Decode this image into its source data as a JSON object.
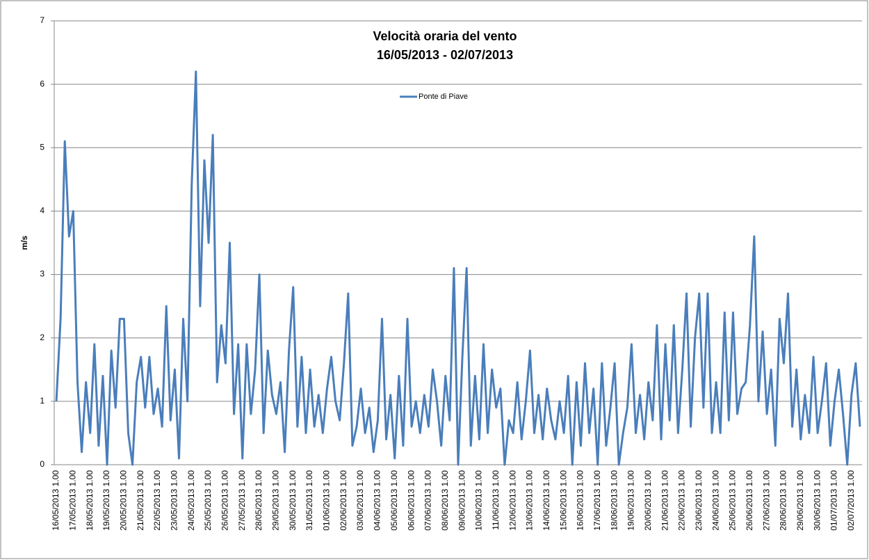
{
  "chart_data": {
    "type": "line",
    "title": "Velocità oraria del vento",
    "subtitle": "16/05/2013 - 02/07/2013",
    "y_label": "m/s",
    "legend": "top",
    "grid": true,
    "ylim": [
      0,
      7
    ],
    "yticks": [
      0,
      1,
      2,
      3,
      4,
      5,
      6,
      7
    ],
    "categories": [
      "16/05/2013 1.00",
      null,
      null,
      null,
      "17/05/2013 1.00",
      null,
      null,
      null,
      "18/05/2013 1.00",
      null,
      null,
      null,
      "19/05/2013 1.00",
      null,
      null,
      null,
      "20/05/2013 1.00",
      null,
      null,
      null,
      "21/05/2013 1.00",
      null,
      null,
      null,
      "22/05/2013 1.00",
      null,
      null,
      null,
      "23/05/2013 1.00",
      null,
      null,
      null,
      "24/05/2013 1.00",
      null,
      null,
      null,
      "25/05/2013 1.00",
      null,
      null,
      null,
      "26/05/2013 1.00",
      null,
      null,
      null,
      "27/05/2013 1.00",
      null,
      null,
      null,
      "28/05/2013 1.00",
      null,
      null,
      null,
      "29/05/2013 1.00",
      null,
      null,
      null,
      "30/05/2013 1.00",
      null,
      null,
      null,
      "31/05/2013 1.00",
      null,
      null,
      null,
      "01/06/2013 1.00",
      null,
      null,
      null,
      "02/06/2013 1.00",
      null,
      null,
      null,
      "03/06/2013 1.00",
      null,
      null,
      null,
      "04/06/2013 1.00",
      null,
      null,
      null,
      "05/06/2013 1.00",
      null,
      null,
      null,
      "06/06/2013 1.00",
      null,
      null,
      null,
      "07/06/2013 1.00",
      null,
      null,
      null,
      "08/06/2013 1.00",
      null,
      null,
      null,
      "09/06/2013 1.00",
      null,
      null,
      null,
      "10/06/2013 1.00",
      null,
      null,
      null,
      "11/06/2013 1.00",
      null,
      null,
      null,
      "12/06/2013 1.00",
      null,
      null,
      null,
      "13/06/2013 1.00",
      null,
      null,
      null,
      "14/06/2013 1.00",
      null,
      null,
      null,
      "15/06/2013 1.00",
      null,
      null,
      null,
      "16/06/2013 1.00",
      null,
      null,
      null,
      "17/06/2013 1.00",
      null,
      null,
      null,
      "18/06/2013 1.00",
      null,
      null,
      null,
      "19/06/2013 1.00",
      null,
      null,
      null,
      "20/06/2013 1.00",
      null,
      null,
      null,
      "21/06/2013 1.00",
      null,
      null,
      null,
      "22/06/2013 1.00",
      null,
      null,
      null,
      "23/06/2013 1.00",
      null,
      null,
      null,
      "24/06/2013 1.00",
      null,
      null,
      null,
      "25/06/2013 1.00",
      null,
      null,
      null,
      "26/06/2013 1.00",
      null,
      null,
      null,
      "27/06/2013 1.00",
      null,
      null,
      null,
      "28/06/2013 1.00",
      null,
      null,
      null,
      "29/06/2013 1.00",
      null,
      null,
      null,
      "30/06/2013 1.00",
      null,
      null,
      null,
      "01/07/2013 1.00",
      null,
      null,
      null,
      "02/07/2013 1.00",
      null,
      null
    ],
    "series": [
      {
        "name": "Ponte di Piave",
        "color": "#4a7ebb",
        "values": [
          1.0,
          2.3,
          5.1,
          3.6,
          4.0,
          1.3,
          0.2,
          1.3,
          0.5,
          1.9,
          0.3,
          1.4,
          0.0,
          1.8,
          0.9,
          2.3,
          2.3,
          0.5,
          0.0,
          1.3,
          1.7,
          0.9,
          1.7,
          0.8,
          1.2,
          0.6,
          2.5,
          0.7,
          1.5,
          0.1,
          2.3,
          1.0,
          4.4,
          6.2,
          2.5,
          4.8,
          3.5,
          5.2,
          1.3,
          2.2,
          1.6,
          3.5,
          0.8,
          1.9,
          0.1,
          1.9,
          0.8,
          1.5,
          3.0,
          0.5,
          1.8,
          1.1,
          0.8,
          1.3,
          0.2,
          1.8,
          2.8,
          0.6,
          1.7,
          0.5,
          1.5,
          0.6,
          1.1,
          0.5,
          1.2,
          1.7,
          1.0,
          0.7,
          1.6,
          2.7,
          0.3,
          0.6,
          1.2,
          0.5,
          0.9,
          0.2,
          0.7,
          2.3,
          0.4,
          1.1,
          0.1,
          1.4,
          0.3,
          2.3,
          0.6,
          1.0,
          0.5,
          1.1,
          0.6,
          1.5,
          1.0,
          0.3,
          1.4,
          0.7,
          3.1,
          0.0,
          1.7,
          3.1,
          0.3,
          1.4,
          0.4,
          1.9,
          0.5,
          1.5,
          0.9,
          1.2,
          0.0,
          0.7,
          0.5,
          1.3,
          0.4,
          1.0,
          1.8,
          0.5,
          1.1,
          0.4,
          1.2,
          0.7,
          0.4,
          1.0,
          0.5,
          1.4,
          0.0,
          1.3,
          0.3,
          1.6,
          0.5,
          1.2,
          0.0,
          1.6,
          0.3,
          0.9,
          1.6,
          0.0,
          0.5,
          0.9,
          1.9,
          0.5,
          1.1,
          0.4,
          1.3,
          0.7,
          2.2,
          0.4,
          1.9,
          0.7,
          2.2,
          0.5,
          1.5,
          2.7,
          0.6,
          2.0,
          2.7,
          0.9,
          2.7,
          0.5,
          1.3,
          0.5,
          2.4,
          0.7,
          2.4,
          0.8,
          1.2,
          1.3,
          2.2,
          3.6,
          1.0,
          2.1,
          0.8,
          1.5,
          0.3,
          2.3,
          1.6,
          2.7,
          0.6,
          1.5,
          0.4,
          1.1,
          0.5,
          1.7,
          0.5,
          1.0,
          1.6,
          0.3,
          1.0,
          1.5,
          0.8,
          0.0,
          1.1,
          1.6,
          0.6
        ]
      }
    ]
  }
}
